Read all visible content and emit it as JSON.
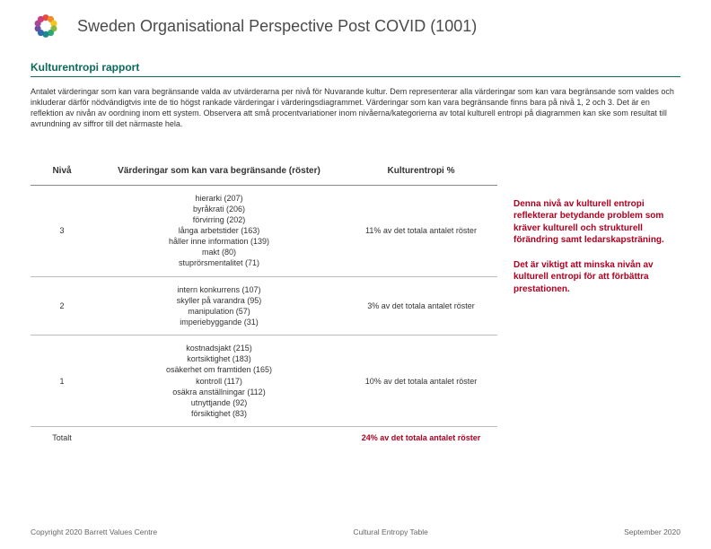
{
  "header": {
    "title": "Sweden Organisational Perspective Post COVID (1001)"
  },
  "section_title": "Kulturentropi rapport",
  "intro": "Antalet värderingar som kan vara begränsande valda av utvärderarna per nivå för Nuvarande kultur. Dem representerar alla värderingar som kan vara begränsande som valdes och inkluderar därför nödvändigtvis inte de tio högst rankade värderingar i värderingsdiagrammet. Värderingar som kan vara begränsande finns bara på nivå 1, 2 och 3. Det är en reflektion av nivån av oordning inom ett system. Observera att små procentvariationer inom nivåerna/kategorierna av total kulturell entropi på diagrammen kan ske som resultat till avrundning av siffror till det närmaste hela.",
  "table": {
    "columns": [
      "Nivå",
      "Värderingar som kan vara begränsande (röster)",
      "Kulturentropi %"
    ],
    "rows": [
      {
        "level": "3",
        "values": [
          "hierarki (207)",
          "byråkrati (206)",
          "förvirring (202)",
          "långa arbetstider (163)",
          "håller inne information (139)",
          "makt (80)",
          "stuprörsmentalitet (71)"
        ],
        "entropy": "11% av det totala antalet röster"
      },
      {
        "level": "2",
        "values": [
          "intern konkurrens (107)",
          "skyller på varandra (95)",
          "manipulation (57)",
          "imperiebyggande (31)"
        ],
        "entropy": "3% av det totala antalet röster"
      },
      {
        "level": "1",
        "values": [
          "kostnadsjakt (215)",
          "kortsiktighet (183)",
          "osäkerhet om framtiden (165)",
          "kontroll (117)",
          "osäkra anställningar (112)",
          "utnyttjande (92)",
          "försiktighet (83)"
        ],
        "entropy": "10% av det totala antalet röster"
      }
    ],
    "total": {
      "label": "Totalt",
      "entropy": "24% av det totala antalet röster"
    }
  },
  "sidebox": {
    "p1": "Denna nivå av kulturell entropi reflekterar betydande problem som kräver kulturell och strukturell förändring samt ledarskapsträning.",
    "p2": "Det är viktigt att minska nivån av kulturell entropi för att förbättra prestationen."
  },
  "footer": {
    "left": "Copyright 2020 Barrett Values Centre",
    "mid": "Cultural Entropy Table",
    "right": "September 2020"
  },
  "logo_colors": [
    "#e94e3a",
    "#f08c2e",
    "#f5c518",
    "#8cb63c",
    "#2aa876",
    "#1f8a8a",
    "#2a6db0",
    "#6a4fa0",
    "#a3499a",
    "#cf3e7c"
  ]
}
